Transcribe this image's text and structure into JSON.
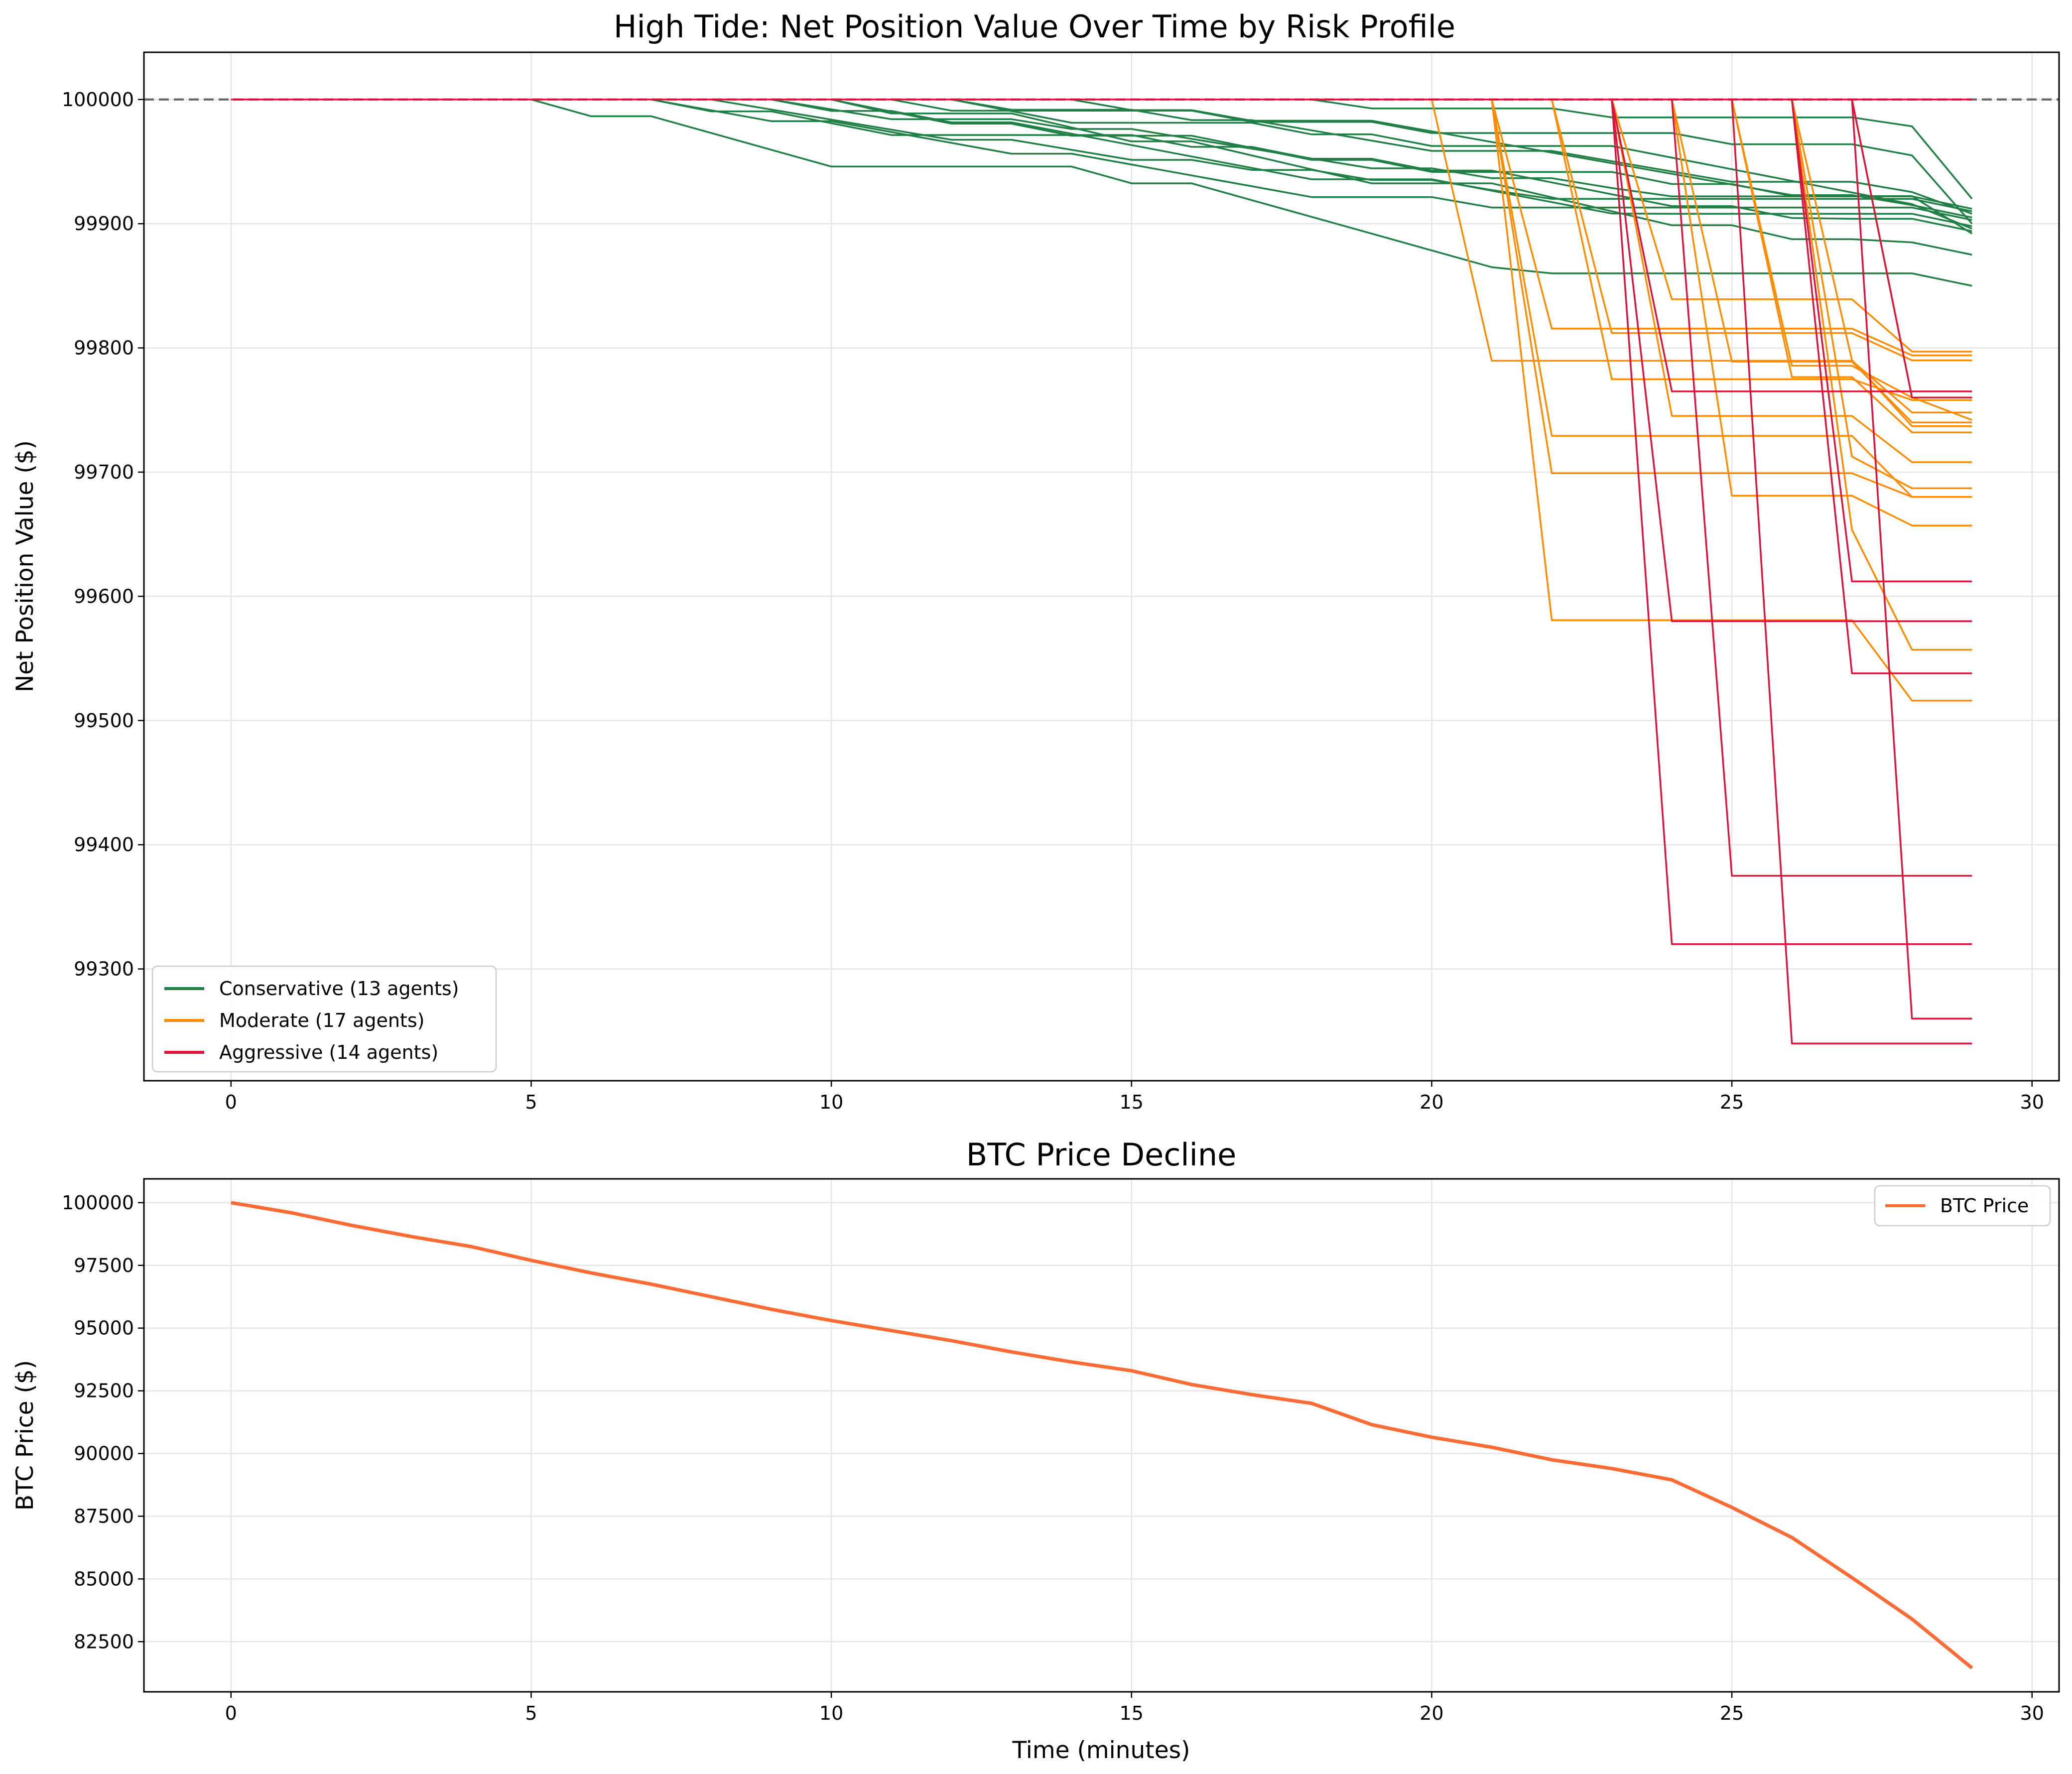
{
  "chart_data": [
    {
      "type": "line",
      "title": "High Tide: Net Position Value Over Time by Risk Profile",
      "xlabel": "",
      "ylabel": "Net Position Value ($)",
      "xlim": [
        -1.45,
        30.45
      ],
      "ylim": [
        99210,
        100038
      ],
      "xticks": [
        0,
        5,
        10,
        15,
        20,
        25,
        30
      ],
      "yticks": [
        99300,
        99400,
        99500,
        99600,
        99700,
        99800,
        99900,
        100000
      ],
      "grid": true,
      "legend_position": "lower-left",
      "reference_line": {
        "y": 100000,
        "style": "dashed",
        "color": "#555555"
      },
      "groups": [
        {
          "name": "Conservative (13 agents)",
          "color": "#1f7f45",
          "agents": 13,
          "final_values": [
            99920,
            99910,
            99908,
            99905,
            99903,
            99900,
            99898,
            99896,
            99894,
            99892,
            99875,
            99850,
            99912
          ]
        },
        {
          "name": "Moderate (17 agents)",
          "color": "#ff8c00",
          "agents": 17,
          "final_values": [
            99797,
            99794,
            99790,
            99760,
            99758,
            99748,
            99742,
            99740,
            99737,
            99732,
            99708,
            99687,
            99680,
            99680,
            99657,
            99557,
            99516
          ]
        },
        {
          "name": "Aggressive (14 agents)",
          "color": "#dc143c",
          "agents": 14,
          "final_values": [
            100000,
            100000,
            100000,
            100000,
            100000,
            99765,
            99760,
            99612,
            99580,
            99538,
            99375,
            99320,
            99260,
            99240
          ]
        }
      ]
    },
    {
      "type": "line",
      "title": "BTC Price Decline",
      "xlabel": "Time (minutes)",
      "ylabel": "BTC Price ($)",
      "xlim": [
        -1.45,
        30.45
      ],
      "ylim": [
        80500,
        100950
      ],
      "xticks": [
        0,
        5,
        10,
        15,
        20,
        25,
        30
      ],
      "yticks": [
        82500,
        85000,
        87500,
        90000,
        92500,
        95000,
        97500,
        100000
      ],
      "grid": true,
      "legend_position": "upper-right",
      "series": [
        {
          "name": "BTC Price",
          "color": "#ff6b35",
          "x": [
            0,
            1,
            2,
            3,
            4,
            5,
            6,
            7,
            8,
            9,
            10,
            11,
            12,
            13,
            14,
            15,
            16,
            17,
            18,
            19,
            20,
            21,
            22,
            23,
            24,
            25,
            26,
            27,
            28,
            29
          ],
          "values": [
            100000,
            99600,
            99100,
            98650,
            98250,
            97700,
            97200,
            96750,
            96250,
            95750,
            95300,
            94900,
            94500,
            94050,
            93650,
            93300,
            92750,
            92350,
            92000,
            91150,
            90650,
            90250,
            89750,
            89400,
            88950,
            87850,
            86650,
            85050,
            83400,
            81450
          ]
        }
      ]
    }
  ]
}
